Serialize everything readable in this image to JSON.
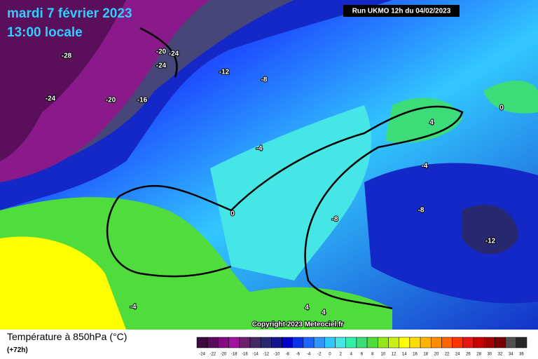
{
  "header": {
    "date": "mardi 7 février 2023",
    "time": "13:00 locale",
    "run": "Run UKMO 12h du 04/02/2023"
  },
  "map": {
    "labels": [
      -28,
      -20,
      -24,
      -24,
      -12,
      -8,
      -24,
      -20,
      -16,
      -4,
      0,
      4,
      0,
      -4,
      -8,
      -8,
      -12,
      -4,
      4,
      4
    ],
    "copyright": "Copyright 2023 Meteociel.fr"
  },
  "legend": {
    "title": "Température à 850hPa (°C)",
    "lead": "(+72h)",
    "ticks": [
      -24,
      -22,
      -20,
      -18,
      -16,
      -14,
      -12,
      -10,
      -8,
      -6,
      -4,
      -2,
      0,
      2,
      4,
      6,
      8,
      10,
      12,
      14,
      16,
      18,
      20,
      22,
      24,
      26,
      28,
      30,
      32,
      34,
      36
    ],
    "colors": [
      "#3c0a3c",
      "#5a0a5a",
      "#820a82",
      "#a014a0",
      "#6e1e6e",
      "#462864",
      "#28286e",
      "#14148c",
      "#0000c8",
      "#0a32e6",
      "#1e64ff",
      "#3296ff",
      "#32c8ff",
      "#46e6e6",
      "#32f0aa",
      "#3cdc78",
      "#50dc3c",
      "#96e61e",
      "#c8f014",
      "#ffff00",
      "#ffdc00",
      "#ffb400",
      "#ff8c00",
      "#ff6400",
      "#ff3200",
      "#e61414",
      "#c80000",
      "#a00000",
      "#780000",
      "#505050",
      "#282828"
    ]
  }
}
